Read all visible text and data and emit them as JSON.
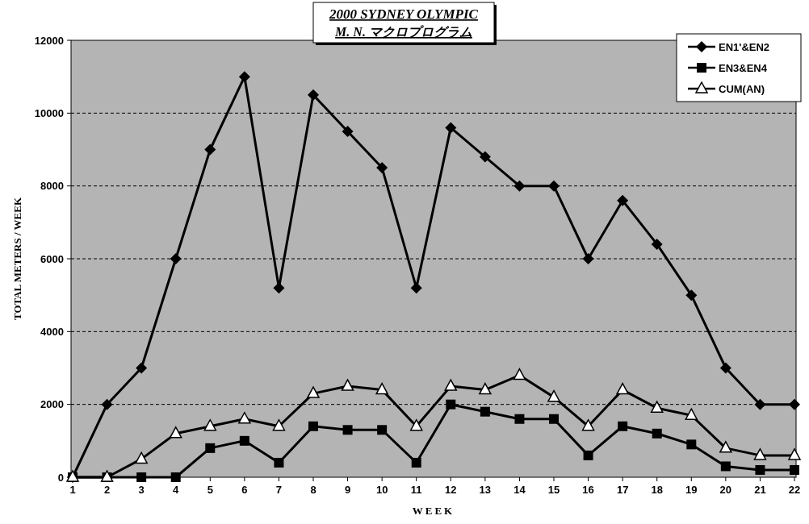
{
  "chart_data": {
    "type": "line",
    "title": "2000 SYDNEY OLYMPIC",
    "subtitle": "M. N. マクロプログラム",
    "xlabel": "WEEK",
    "ylabel": "TOTAL METERS / WEEK",
    "categories": [
      "1",
      "2",
      "3",
      "4",
      "5",
      "6",
      "7",
      "8",
      "9",
      "10",
      "11",
      "12",
      "13",
      "14",
      "15",
      "16",
      "17",
      "18",
      "19",
      "20",
      "21",
      "22"
    ],
    "series": [
      {
        "name": "EN1'&EN2",
        "color": "#000000",
        "marker": "diamond",
        "values": [
          0,
          2000,
          3000,
          6000,
          9000,
          11000,
          5200,
          10500,
          9500,
          8500,
          5200,
          9600,
          8800,
          8000,
          8000,
          6000,
          7600,
          6400,
          5000,
          3000,
          2000,
          2000
        ]
      },
      {
        "name": "EN3&EN4",
        "color": "#000000",
        "marker": "square",
        "values": [
          0,
          0,
          0,
          0,
          800,
          1000,
          400,
          1400,
          1300,
          1300,
          400,
          2000,
          1800,
          1600,
          1600,
          600,
          1400,
          1200,
          900,
          300,
          200,
          200
        ]
      },
      {
        "name": "CUM(AN)",
        "color": "#000000",
        "marker": "triangle",
        "values": [
          0,
          0,
          500,
          1200,
          1400,
          1600,
          1400,
          2300,
          2500,
          2400,
          1400,
          2500,
          2400,
          2800,
          2200,
          1400,
          2400,
          1900,
          1700,
          800,
          600,
          600
        ]
      }
    ],
    "ylim": [
      0,
      12000
    ],
    "yticks": [
      0,
      2000,
      4000,
      6000,
      8000,
      10000,
      12000
    ],
    "grid": "y",
    "legend": "top right",
    "line_style": "solid"
  }
}
